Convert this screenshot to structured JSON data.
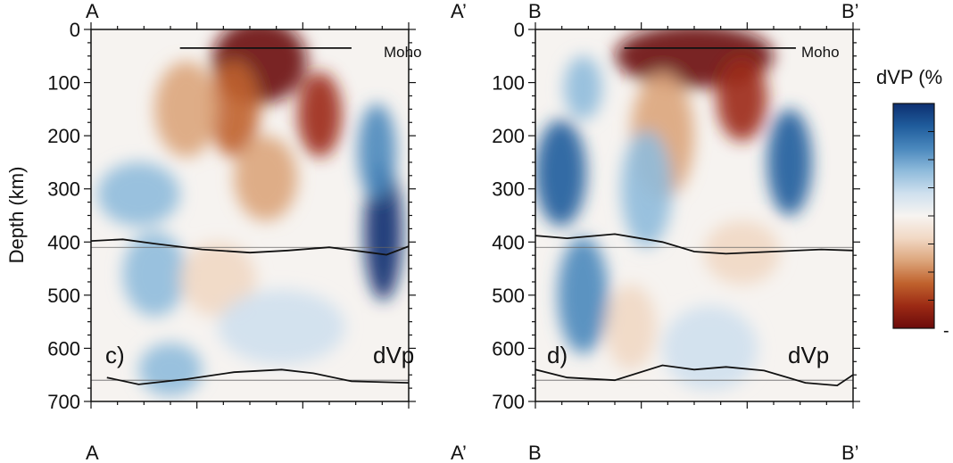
{
  "chart_data": [
    {
      "type": "heatmap",
      "panel_label": "c)",
      "field_label": "dVp",
      "top_left_label": "A",
      "top_right_label": "A’",
      "bottom_left_label": "A",
      "bottom_right_label": "A’",
      "ylabel": "Depth (km)",
      "ylim": [
        0,
        700
      ],
      "yticks": [
        0,
        100,
        200,
        300,
        400,
        500,
        600,
        700
      ],
      "annotation": "Moho",
      "moho_depth": 35,
      "d410_line": [
        [
          0,
          398
        ],
        [
          0.1,
          395
        ],
        [
          0.2,
          403
        ],
        [
          0.35,
          414
        ],
        [
          0.5,
          420
        ],
        [
          0.62,
          416
        ],
        [
          0.75,
          410
        ],
        [
          0.88,
          420
        ],
        [
          0.93,
          424
        ],
        [
          1.0,
          408
        ]
      ],
      "d660_line": [
        [
          0.05,
          655
        ],
        [
          0.15,
          668
        ],
        [
          0.3,
          658
        ],
        [
          0.45,
          645
        ],
        [
          0.6,
          640
        ],
        [
          0.7,
          647
        ],
        [
          0.82,
          662
        ],
        [
          1.0,
          665
        ]
      ],
      "anomalies": [
        {
          "cx": 0.53,
          "cy": 60,
          "rx": 0.15,
          "ry": 80,
          "dvp": -1.0
        },
        {
          "cx": 0.45,
          "cy": 150,
          "rx": 0.08,
          "ry": 90,
          "dvp": -0.7
        },
        {
          "cx": 0.72,
          "cy": 160,
          "rx": 0.07,
          "ry": 80,
          "dvp": -0.8
        },
        {
          "cx": 0.3,
          "cy": 150,
          "rx": 0.1,
          "ry": 90,
          "dvp": -0.5
        },
        {
          "cx": 0.55,
          "cy": 280,
          "rx": 0.1,
          "ry": 80,
          "dvp": -0.35
        },
        {
          "cx": 0.92,
          "cy": 380,
          "rx": 0.06,
          "ry": 130,
          "dvp": 1.0
        },
        {
          "cx": 0.9,
          "cy": 230,
          "rx": 0.06,
          "ry": 90,
          "dvp": 0.55
        },
        {
          "cx": 0.15,
          "cy": 310,
          "rx": 0.13,
          "ry": 60,
          "dvp": 0.35
        },
        {
          "cx": 0.2,
          "cy": 460,
          "rx": 0.1,
          "ry": 80,
          "dvp": 0.4
        },
        {
          "cx": 0.4,
          "cy": 470,
          "rx": 0.12,
          "ry": 70,
          "dvp": -0.3
        },
        {
          "cx": 0.6,
          "cy": 560,
          "rx": 0.2,
          "ry": 70,
          "dvp": 0.2
        },
        {
          "cx": 0.25,
          "cy": 640,
          "rx": 0.1,
          "ry": 50,
          "dvp": 0.4
        }
      ]
    },
    {
      "type": "heatmap",
      "panel_label": "d)",
      "field_label": "dVp",
      "top_left_label": "B",
      "top_right_label": "B’",
      "bottom_left_label": "B",
      "bottom_right_label": "B’",
      "ylim": [
        0,
        700
      ],
      "annotation": "Moho",
      "moho_depth": 35,
      "d410_line": [
        [
          0,
          388
        ],
        [
          0.1,
          393
        ],
        [
          0.25,
          385
        ],
        [
          0.4,
          400
        ],
        [
          0.5,
          418
        ],
        [
          0.6,
          422
        ],
        [
          0.75,
          418
        ],
        [
          0.9,
          414
        ],
        [
          1.0,
          416
        ]
      ],
      "d660_line": [
        [
          0,
          640
        ],
        [
          0.1,
          655
        ],
        [
          0.25,
          660
        ],
        [
          0.4,
          632
        ],
        [
          0.5,
          640
        ],
        [
          0.6,
          635
        ],
        [
          0.72,
          642
        ],
        [
          0.85,
          665
        ],
        [
          0.95,
          670
        ],
        [
          1.0,
          650
        ]
      ],
      "anomalies": [
        {
          "cx": 0.5,
          "cy": 50,
          "rx": 0.25,
          "ry": 60,
          "dvp": -1.0
        },
        {
          "cx": 0.65,
          "cy": 130,
          "rx": 0.08,
          "ry": 80,
          "dvp": -0.8
        },
        {
          "cx": 0.4,
          "cy": 200,
          "rx": 0.1,
          "ry": 120,
          "dvp": -0.5
        },
        {
          "cx": 0.8,
          "cy": 250,
          "rx": 0.07,
          "ry": 100,
          "dvp": 0.85
        },
        {
          "cx": 0.08,
          "cy": 270,
          "rx": 0.08,
          "ry": 100,
          "dvp": 0.8
        },
        {
          "cx": 0.15,
          "cy": 500,
          "rx": 0.08,
          "ry": 110,
          "dvp": 0.65
        },
        {
          "cx": 0.35,
          "cy": 300,
          "rx": 0.08,
          "ry": 110,
          "dvp": 0.45
        },
        {
          "cx": 0.3,
          "cy": 560,
          "rx": 0.08,
          "ry": 80,
          "dvp": -0.3
        },
        {
          "cx": 0.55,
          "cy": 600,
          "rx": 0.15,
          "ry": 80,
          "dvp": 0.25
        },
        {
          "cx": 0.65,
          "cy": 420,
          "rx": 0.12,
          "ry": 60,
          "dvp": -0.2
        },
        {
          "cx": 0.15,
          "cy": 110,
          "rx": 0.06,
          "ry": 60,
          "dvp": 0.35
        }
      ]
    }
  ],
  "colorbar": {
    "title": "dVP (%",
    "tick_label_bottom": "-",
    "colors": [
      "#6b0b0b",
      "#9c2a14",
      "#c0622d",
      "#dca57b",
      "#f1d8c4",
      "#f7f4f1",
      "#cfe0ee",
      "#8fbbdb",
      "#4a88bd",
      "#1f5c9c",
      "#0d2f70"
    ]
  }
}
